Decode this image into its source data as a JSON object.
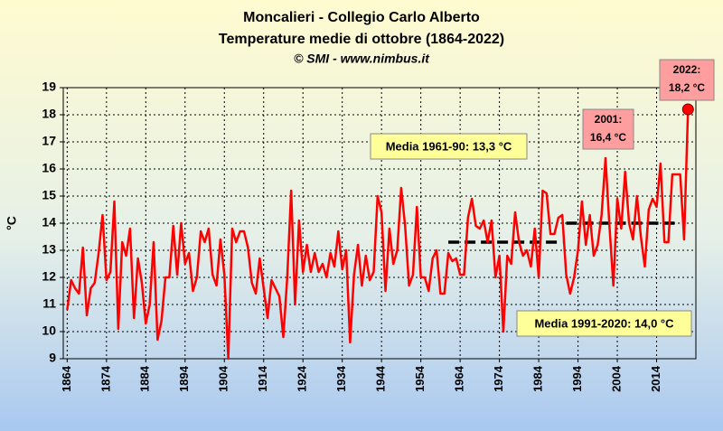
{
  "chart_data": {
    "type": "line",
    "title": "Moncalieri - Collegio Carlo Alberto",
    "subtitle": "Temperature medie di ottobre (1864-2022)",
    "credit": "© SMI - www.nimbus.it",
    "y_label": "°C",
    "color": "#ff0000",
    "x": [
      1864,
      1865,
      1866,
      1867,
      1868,
      1869,
      1870,
      1871,
      1872,
      1873,
      1874,
      1875,
      1876,
      1877,
      1878,
      1879,
      1880,
      1881,
      1882,
      1883,
      1884,
      1885,
      1886,
      1887,
      1888,
      1889,
      1890,
      1891,
      1892,
      1893,
      1894,
      1895,
      1896,
      1897,
      1898,
      1899,
      1900,
      1901,
      1902,
      1903,
      1904,
      1905,
      1906,
      1907,
      1908,
      1909,
      1910,
      1911,
      1912,
      1913,
      1914,
      1915,
      1916,
      1917,
      1918,
      1919,
      1920,
      1921,
      1922,
      1923,
      1924,
      1925,
      1926,
      1927,
      1928,
      1929,
      1930,
      1931,
      1932,
      1933,
      1934,
      1935,
      1936,
      1937,
      1938,
      1939,
      1940,
      1941,
      1942,
      1943,
      1944,
      1945,
      1946,
      1947,
      1948,
      1949,
      1950,
      1951,
      1952,
      1953,
      1954,
      1955,
      1956,
      1957,
      1958,
      1959,
      1960,
      1961,
      1962,
      1963,
      1964,
      1965,
      1966,
      1967,
      1968,
      1969,
      1970,
      1971,
      1972,
      1973,
      1974,
      1975,
      1976,
      1977,
      1978,
      1979,
      1980,
      1981,
      1982,
      1983,
      1984,
      1985,
      1986,
      1987,
      1988,
      1989,
      1990,
      1991,
      1992,
      1993,
      1994,
      1995,
      1996,
      1997,
      1998,
      1999,
      2000,
      2001,
      2002,
      2003,
      2004,
      2005,
      2006,
      2007,
      2008,
      2009,
      2010,
      2011,
      2012,
      2013,
      2014,
      2015,
      2016,
      2017,
      2018,
      2019,
      2020,
      2021,
      2022
    ],
    "values": [
      10.8,
      11.9,
      11.6,
      11.4,
      13.1,
      10.6,
      11.6,
      11.8,
      12.9,
      14.3,
      11.9,
      12.2,
      14.8,
      10.1,
      13.3,
      12.8,
      13.8,
      10.5,
      12.7,
      11.8,
      10.3,
      11.0,
      13.3,
      9.7,
      10.4,
      12.0,
      12.0,
      13.9,
      12.1,
      14.0,
      12.5,
      12.9,
      11.5,
      12.0,
      13.7,
      13.3,
      13.8,
      12.1,
      11.7,
      13.4,
      12.1,
      9.0,
      13.8,
      13.3,
      13.7,
      13.7,
      13.1,
      11.8,
      11.4,
      12.7,
      11.6,
      10.5,
      11.9,
      11.6,
      11.3,
      9.8,
      12.0,
      15.2,
      11.0,
      14.1,
      12.2,
      13.2,
      12.2,
      12.9,
      12.2,
      12.5,
      12.0,
      12.9,
      12.4,
      13.7,
      12.3,
      13.0,
      9.6,
      12.1,
      13.2,
      11.7,
      12.8,
      11.9,
      12.2,
      15.0,
      14.4,
      11.5,
      13.8,
      12.5,
      13.0,
      15.3,
      13.9,
      11.7,
      12.1,
      14.6,
      12.0,
      12.0,
      11.5,
      12.7,
      13.0,
      11.4,
      11.4,
      12.9,
      12.6,
      12.7,
      12.1,
      12.1,
      14.2,
      14.9,
      13.9,
      13.8,
      14.1,
      13.3,
      14.1,
      12.0,
      12.8,
      10.0,
      12.8,
      12.5,
      14.4,
      13.3,
      12.8,
      13.0,
      12.4,
      13.8,
      12.0,
      15.2,
      15.1,
      13.6,
      13.6,
      14.2,
      14.3,
      12.1,
      11.4,
      12.0,
      13.0,
      14.8,
      13.2,
      14.3,
      12.8,
      13.2,
      14.3,
      16.4,
      13.9,
      11.7,
      14.9,
      13.8,
      15.9,
      14.0,
      13.4,
      15.0,
      13.5,
      12.4,
      14.5,
      14.9,
      14.6,
      16.2,
      13.3,
      13.3,
      15.8,
      15.8,
      15.8,
      13.4,
      18.2
    ],
    "xlim": [
      1863,
      2024
    ],
    "xticks": [
      1864,
      1874,
      1884,
      1894,
      1904,
      1914,
      1924,
      1934,
      1944,
      1954,
      1964,
      1974,
      1984,
      1994,
      2004,
      2014
    ],
    "ylim": [
      9,
      19
    ],
    "yticks": [
      9,
      10,
      11,
      12,
      13,
      14,
      15,
      16,
      17,
      18,
      19
    ],
    "grid": true,
    "reference_lines": [
      {
        "label": "Media 1961-90: 13,3 °C",
        "value": 13.3,
        "x_range": [
          1961,
          1990
        ]
      },
      {
        "label": "Media 1991-2020: 14,0 °C",
        "value": 14.0,
        "x_range": [
          1991,
          2020
        ]
      }
    ],
    "annotations": [
      {
        "lines": [
          "2001:",
          "16,4 °C"
        ]
      },
      {
        "lines": [
          "2022:",
          "18,2 °C"
        ]
      }
    ]
  }
}
